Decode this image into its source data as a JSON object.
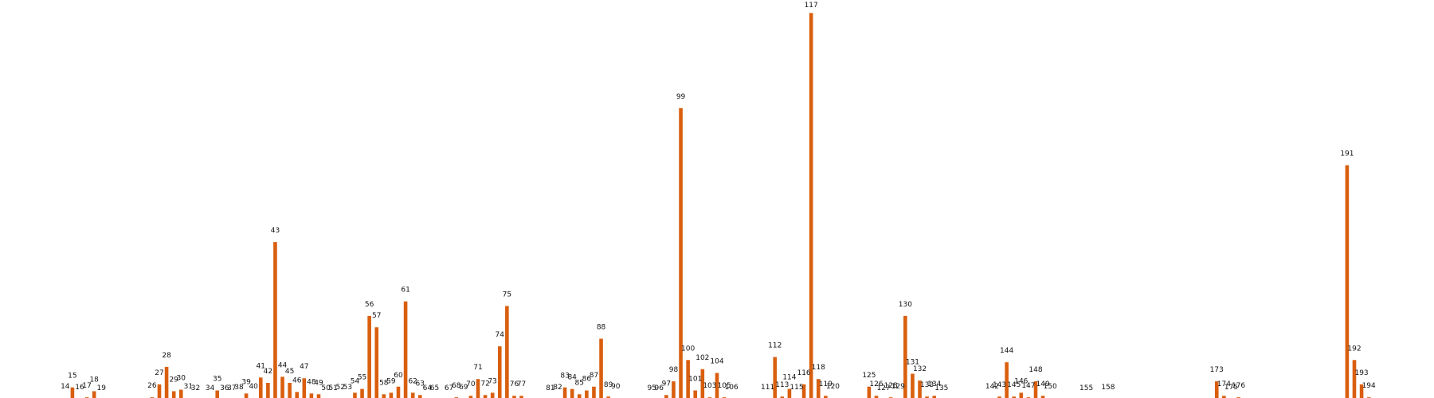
{
  "chart_data": {
    "type": "bar",
    "title": "",
    "xlabel": "",
    "ylabel": "",
    "grid": false,
    "bar_color": "#d95f0e",
    "ylim": [
      0,
      500
    ],
    "xlim": [
      5,
      203
    ],
    "points": [
      {
        "x": 14,
        "label": "14",
        "value": 2
      },
      {
        "x": 15,
        "label": "15",
        "value": 16
      },
      {
        "x": 16,
        "label": "16",
        "value": 1
      },
      {
        "x": 17,
        "label": "17",
        "value": 3
      },
      {
        "x": 18,
        "label": "18",
        "value": 11
      },
      {
        "x": 19,
        "label": "19",
        "value": 0
      },
      {
        "x": 26,
        "label": "26",
        "value": 3
      },
      {
        "x": 27,
        "label": "27",
        "value": 20
      },
      {
        "x": 28,
        "label": "28",
        "value": 43
      },
      {
        "x": 29,
        "label": "29",
        "value": 11
      },
      {
        "x": 30,
        "label": "30",
        "value": 13
      },
      {
        "x": 31,
        "label": "31",
        "value": 2
      },
      {
        "x": 32,
        "label": "32",
        "value": 0
      },
      {
        "x": 34,
        "label": "34",
        "value": 0
      },
      {
        "x": 35,
        "label": "35",
        "value": 12
      },
      {
        "x": 36,
        "label": "36",
        "value": 0
      },
      {
        "x": 37,
        "label": "37",
        "value": 0
      },
      {
        "x": 38,
        "label": "38",
        "value": 1
      },
      {
        "x": 39,
        "label": "39",
        "value": 8
      },
      {
        "x": 40,
        "label": "40",
        "value": 2
      },
      {
        "x": 41,
        "label": "41",
        "value": 29
      },
      {
        "x": 42,
        "label": "42",
        "value": 22
      },
      {
        "x": 43,
        "label": "43",
        "value": 207
      },
      {
        "x": 44,
        "label": "44",
        "value": 30
      },
      {
        "x": 45,
        "label": "45",
        "value": 22
      },
      {
        "x": 46,
        "label": "46",
        "value": 10
      },
      {
        "x": 47,
        "label": "47",
        "value": 28
      },
      {
        "x": 48,
        "label": "48",
        "value": 8
      },
      {
        "x": 49,
        "label": "49",
        "value": 7
      },
      {
        "x": 50,
        "label": "50",
        "value": 0
      },
      {
        "x": 51,
        "label": "51",
        "value": 0
      },
      {
        "x": 52,
        "label": "52",
        "value": 1
      },
      {
        "x": 53,
        "label": "53",
        "value": 1
      },
      {
        "x": 54,
        "label": "54",
        "value": 9
      },
      {
        "x": 55,
        "label": "55",
        "value": 14
      },
      {
        "x": 56,
        "label": "56",
        "value": 110
      },
      {
        "x": 57,
        "label": "57",
        "value": 95
      },
      {
        "x": 58,
        "label": "58",
        "value": 7
      },
      {
        "x": 59,
        "label": "59",
        "value": 9
      },
      {
        "x": 60,
        "label": "60",
        "value": 17
      },
      {
        "x": 61,
        "label": "61",
        "value": 129
      },
      {
        "x": 62,
        "label": "62",
        "value": 9
      },
      {
        "x": 63,
        "label": "63",
        "value": 6
      },
      {
        "x": 64,
        "label": "64",
        "value": 0
      },
      {
        "x": 65,
        "label": "65",
        "value": 0
      },
      {
        "x": 67,
        "label": "67",
        "value": 0
      },
      {
        "x": 68,
        "label": "68",
        "value": 3
      },
      {
        "x": 69,
        "label": "69",
        "value": 1
      },
      {
        "x": 70,
        "label": "70",
        "value": 5
      },
      {
        "x": 71,
        "label": "71",
        "value": 27
      },
      {
        "x": 72,
        "label": "72",
        "value": 6
      },
      {
        "x": 73,
        "label": "73",
        "value": 9
      },
      {
        "x": 74,
        "label": "74",
        "value": 70
      },
      {
        "x": 75,
        "label": "75",
        "value": 123
      },
      {
        "x": 76,
        "label": "76",
        "value": 5
      },
      {
        "x": 77,
        "label": "77",
        "value": 5
      },
      {
        "x": 81,
        "label": "81",
        "value": 0
      },
      {
        "x": 82,
        "label": "82",
        "value": 1
      },
      {
        "x": 83,
        "label": "83",
        "value": 16
      },
      {
        "x": 84,
        "label": "84",
        "value": 14
      },
      {
        "x": 85,
        "label": "85",
        "value": 7
      },
      {
        "x": 86,
        "label": "86",
        "value": 12
      },
      {
        "x": 87,
        "label": "87",
        "value": 17
      },
      {
        "x": 88,
        "label": "88",
        "value": 80
      },
      {
        "x": 89,
        "label": "89",
        "value": 4
      },
      {
        "x": 90,
        "label": "90",
        "value": 2
      },
      {
        "x": 95,
        "label": "95",
        "value": 0
      },
      {
        "x": 96,
        "label": "96",
        "value": 0
      },
      {
        "x": 97,
        "label": "97",
        "value": 6
      },
      {
        "x": 98,
        "label": "98",
        "value": 24
      },
      {
        "x": 99,
        "label": "99",
        "value": 383
      },
      {
        "x": 100,
        "label": "100",
        "value": 52
      },
      {
        "x": 101,
        "label": "101",
        "value": 12
      },
      {
        "x": 102,
        "label": "102",
        "value": 40
      },
      {
        "x": 103,
        "label": "103",
        "value": 3
      },
      {
        "x": 104,
        "label": "104",
        "value": 35
      },
      {
        "x": 105,
        "label": "105",
        "value": 3
      },
      {
        "x": 106,
        "label": "106",
        "value": 1
      },
      {
        "x": 111,
        "label": "111",
        "value": 1
      },
      {
        "x": 112,
        "label": "112",
        "value": 56
      },
      {
        "x": 113,
        "label": "113",
        "value": 4
      },
      {
        "x": 114,
        "label": "114",
        "value": 14
      },
      {
        "x": 115,
        "label": "115",
        "value": 1
      },
      {
        "x": 116,
        "label": "116",
        "value": 20
      },
      {
        "x": 117,
        "label": "117",
        "value": 508
      },
      {
        "x": 118,
        "label": "118",
        "value": 27
      },
      {
        "x": 119,
        "label": "119",
        "value": 5
      },
      {
        "x": 120,
        "label": "120",
        "value": 2
      },
      {
        "x": 125,
        "label": "125",
        "value": 17
      },
      {
        "x": 126,
        "label": "126",
        "value": 5
      },
      {
        "x": 127,
        "label": "127",
        "value": 0
      },
      {
        "x": 128,
        "label": "128",
        "value": 3
      },
      {
        "x": 129,
        "label": "129",
        "value": 2
      },
      {
        "x": 130,
        "label": "130",
        "value": 110
      },
      {
        "x": 131,
        "label": "131",
        "value": 34
      },
      {
        "x": 132,
        "label": "132",
        "value": 25
      },
      {
        "x": 133,
        "label": "133",
        "value": 4
      },
      {
        "x": 134,
        "label": "134",
        "value": 5
      },
      {
        "x": 135,
        "label": "135",
        "value": 0
      },
      {
        "x": 142,
        "label": "142",
        "value": 2
      },
      {
        "x": 143,
        "label": "143",
        "value": 4
      },
      {
        "x": 144,
        "label": "144",
        "value": 49
      },
      {
        "x": 145,
        "label": "145",
        "value": 4
      },
      {
        "x": 146,
        "label": "146",
        "value": 9
      },
      {
        "x": 147,
        "label": "147",
        "value": 3
      },
      {
        "x": 148,
        "label": "148",
        "value": 24
      },
      {
        "x": 149,
        "label": "149",
        "value": 5
      },
      {
        "x": 150,
        "label": "150",
        "value": 2
      },
      {
        "x": 155,
        "label": "155",
        "value": 0
      },
      {
        "x": 158,
        "label": "158",
        "value": 1
      },
      {
        "x": 173,
        "label": "173",
        "value": 24
      },
      {
        "x": 174,
        "label": "174",
        "value": 5
      },
      {
        "x": 175,
        "label": "175",
        "value": 1
      },
      {
        "x": 176,
        "label": "176",
        "value": 3
      },
      {
        "x": 191,
        "label": "191",
        "value": 308
      },
      {
        "x": 192,
        "label": "192",
        "value": 52
      },
      {
        "x": 193,
        "label": "193",
        "value": 20
      },
      {
        "x": 194,
        "label": "194",
        "value": 3
      }
    ]
  }
}
